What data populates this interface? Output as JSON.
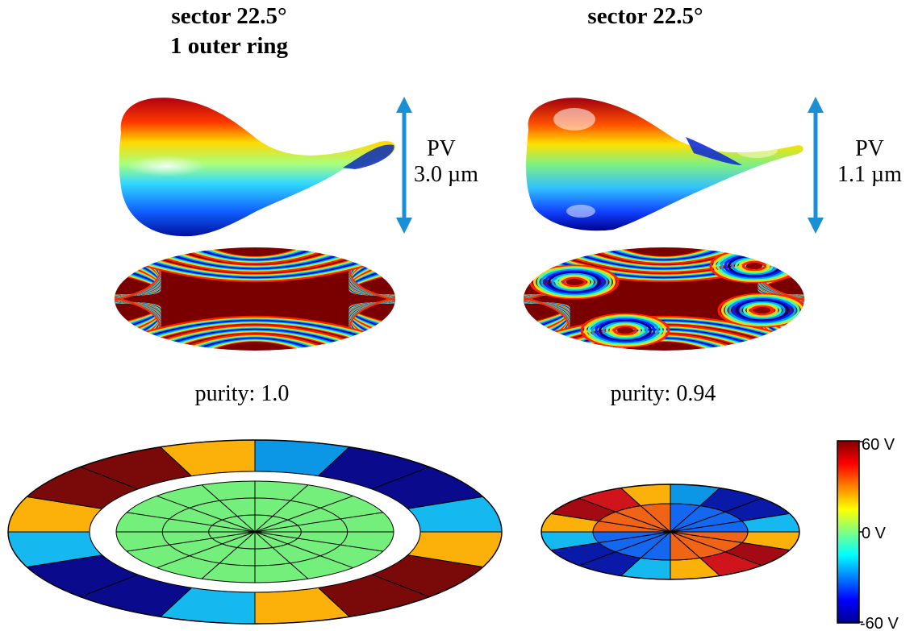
{
  "panels": [
    {
      "title_lines": [
        "sector 22.5°",
        "1 outer ring"
      ],
      "pv_label": "PV",
      "pv_value": "3.0 µm",
      "purity": "purity: 1.0",
      "inner_rings": 2,
      "sectors": 16,
      "inner_color": "#74ef7c",
      "outer_colors": [
        "#0c96e6",
        "#0a0a8c",
        "#0a0a8c",
        "#16b8f0",
        "#fbb00a",
        "#7a0a0a",
        "#7a0a0a",
        "#fbb00a",
        "#16b8f0",
        "#0a0a8c",
        "#0a0a8c",
        "#16b8f0",
        "#fbb00a",
        "#7a0a0a",
        "#7a0a0a",
        "#fbb00a"
      ]
    },
    {
      "title_lines": [
        "sector 22.5°"
      ],
      "pv_label": "PV",
      "pv_value": "1.1 µm",
      "purity": "purity: 0.94",
      "sectors": 16,
      "outer_colors": [
        "#0c96e6",
        "#0a1aa8",
        "#0a1aa8",
        "#16b8f0",
        "#fbb00a",
        "#a40a14",
        "#d0141c",
        "#fbb00a",
        "#16b8f0",
        "#0a1aa8",
        "#0a1aa8",
        "#16b8f0",
        "#fbb00a",
        "#a40a14",
        "#d0141c",
        "#fbb00a"
      ],
      "inner_colors": [
        "#1468f0",
        "#1468f0",
        "#1468f0",
        "#1468f0",
        "#f06418",
        "#f06418",
        "#f06418",
        "#f06418",
        "#1468f0",
        "#1468f0",
        "#1468f0",
        "#1468f0",
        "#f06418",
        "#f06418",
        "#f06418",
        "#f06418"
      ]
    }
  ],
  "colorbar": {
    "top_label": "60 V",
    "mid_label": "0 V",
    "bottom_label": "-60 V",
    "colors": [
      "#00008f",
      "#0000ff",
      "#0080ff",
      "#00ffff",
      "#80ff80",
      "#ffff00",
      "#ff8000",
      "#ff0000",
      "#800000"
    ]
  },
  "arrow_color": "#1a8fd6"
}
